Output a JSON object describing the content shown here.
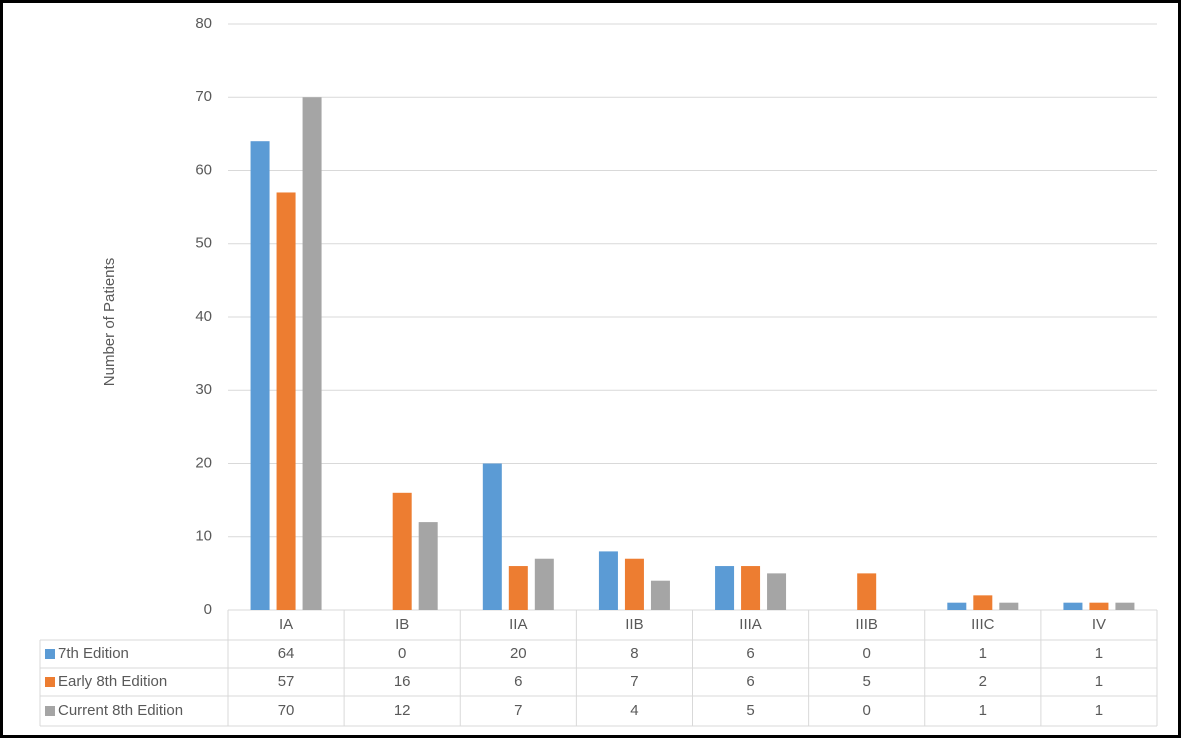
{
  "chart_data": {
    "type": "bar",
    "y_label": "Number of Patients",
    "categories": [
      "IA",
      "IB",
      "IIA",
      "IIB",
      "IIIA",
      "IIIB",
      "IIIC",
      "IV"
    ],
    "series": [
      {
        "name": "7th Edition",
        "color": "#5b9bd5",
        "values": [
          64,
          0,
          20,
          8,
          6,
          0,
          1,
          1
        ]
      },
      {
        "name": "Early 8th Edition",
        "color": "#ed7d31",
        "values": [
          57,
          16,
          6,
          7,
          6,
          5,
          2,
          1
        ]
      },
      {
        "name": "Current 8th Edition",
        "color": "#a5a5a5",
        "values": [
          70,
          12,
          7,
          4,
          5,
          0,
          1,
          1
        ]
      }
    ],
    "ylim": [
      0,
      80
    ],
    "yticks": [
      0,
      10,
      20,
      30,
      40,
      50,
      60,
      70,
      80
    ],
    "grid": true
  }
}
